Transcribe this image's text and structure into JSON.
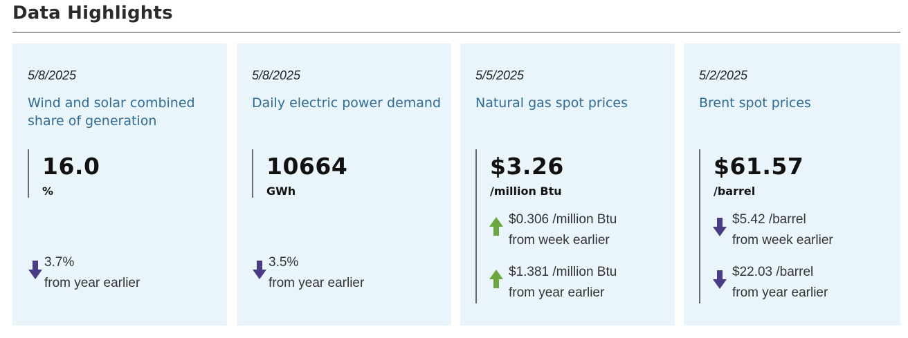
{
  "header": {
    "title": "Data Highlights"
  },
  "colors": {
    "card_bg": "#e9f4fb",
    "title_blue": "#2f6c96",
    "down_arrow": "#4a3b86",
    "up_arrow": "#6aa83e"
  },
  "cards": [
    {
      "date": "5/8/2025",
      "title": "Wind and solar combined share of generation",
      "value": "16.0",
      "unit": "%",
      "changes": [
        {
          "direction": "down",
          "icon": "arrow-down-icon",
          "amount": "3.7%",
          "label": "from year earlier"
        }
      ]
    },
    {
      "date": "5/8/2025",
      "title": "Daily electric power demand",
      "value": "10664",
      "unit": "GWh",
      "changes": [
        {
          "direction": "down",
          "icon": "arrow-down-icon",
          "amount": "3.5%",
          "label": "from year earlier"
        }
      ]
    },
    {
      "date": "5/5/2025",
      "title": "Natural gas spot prices",
      "value": "$3.26",
      "unit": "/million Btu",
      "changes": [
        {
          "direction": "up",
          "icon": "arrow-up-icon",
          "amount": "$0.306 /million Btu",
          "label": "from week earlier"
        },
        {
          "direction": "up",
          "icon": "arrow-up-icon",
          "amount": "$1.381 /million Btu",
          "label": "from year earlier"
        }
      ]
    },
    {
      "date": "5/2/2025",
      "title": "Brent spot prices",
      "value": "$61.57",
      "unit": "/barrel",
      "changes": [
        {
          "direction": "down",
          "icon": "arrow-down-icon",
          "amount": "$5.42 /barrel",
          "label": "from week earlier"
        },
        {
          "direction": "down",
          "icon": "arrow-down-icon",
          "amount": "$22.03 /barrel",
          "label": "from year earlier"
        }
      ]
    }
  ]
}
